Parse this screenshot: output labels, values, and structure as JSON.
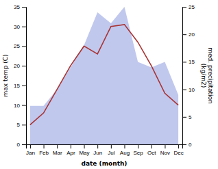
{
  "chart_data": {
    "type": "line",
    "categories": [
      "Jan",
      "Feb",
      "Mar",
      "Apr",
      "May",
      "Jun",
      "Jul",
      "Aug",
      "Sep",
      "Oct",
      "Nov",
      "Dec"
    ],
    "series": [
      {
        "type": "area",
        "axis": "y2",
        "color": "#c0c8ee",
        "values": [
          7,
          7,
          10,
          14,
          18,
          24,
          22,
          25,
          15,
          14,
          15,
          9
        ]
      },
      {
        "type": "line",
        "color": "#aa3333",
        "values": [
          5,
          8,
          14,
          20,
          25,
          23,
          30,
          30.5,
          26,
          20,
          13,
          10
        ]
      }
    ],
    "xlabel": "date (month)",
    "ylabel": "max temp (C)",
    "y2label": "med. precipitation\n(kg/m2)",
    "ylim": [
      0,
      35
    ],
    "yticks": [
      0,
      5,
      10,
      15,
      20,
      25,
      30,
      35
    ],
    "y2lim": [
      0,
      25
    ],
    "y2ticks": [
      0,
      5,
      10,
      15,
      20,
      25
    ],
    "grid": false
  }
}
